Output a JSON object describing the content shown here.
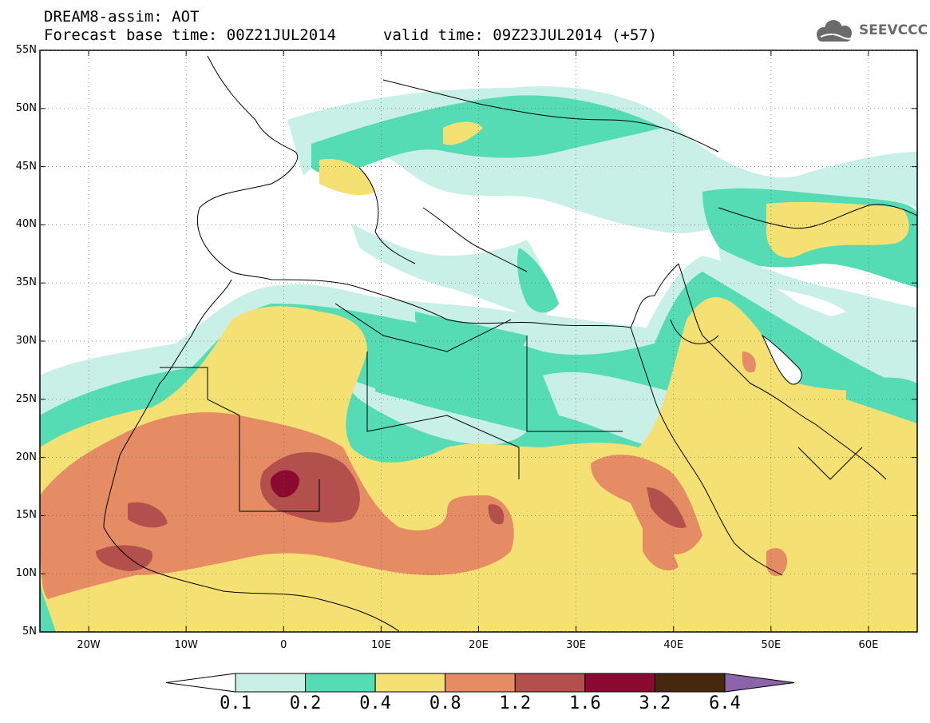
{
  "header": {
    "title": "DREAM8-assim: AOT",
    "base_time": "Forecast base time: 00Z21JUL2014",
    "valid_time": "valid time: 09Z23JUL2014 (+57)"
  },
  "logo": {
    "text": "SEEVCCC",
    "icon": "cloud-icon",
    "color": "#6a6a6a"
  },
  "map": {
    "lat_labels": [
      "55N",
      "50N",
      "45N",
      "40N",
      "35N",
      "30N",
      "25N",
      "20N",
      "15N",
      "10N",
      "5N"
    ],
    "lon_labels": [
      "20W",
      "10W",
      "0",
      "10E",
      "20E",
      "30E",
      "40E",
      "50E",
      "60E"
    ],
    "lat_range": [
      5,
      55
    ],
    "lon_range": [
      -25,
      65
    ],
    "variable": "AOT"
  },
  "colorbar": {
    "labels": [
      "0.1",
      "0.2",
      "0.4",
      "0.8",
      "1.2",
      "1.6",
      "3.2",
      "6.4"
    ],
    "colors": [
      "#ffffff",
      "#c8f0e6",
      "#55dcb4",
      "#f5e173",
      "#e68c64",
      "#b4504b",
      "#8c0a32",
      "#46280f",
      "#8c64aa"
    ]
  }
}
